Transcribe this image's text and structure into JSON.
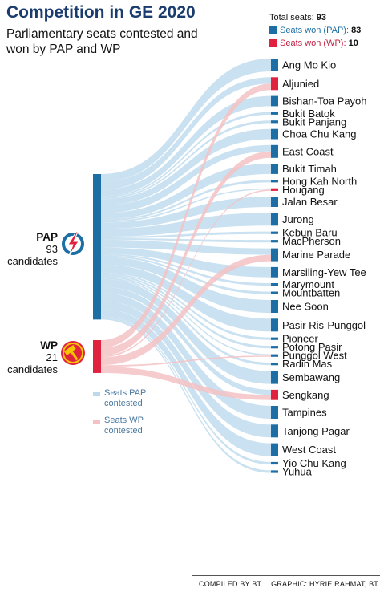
{
  "title": "Competition in GE 2020",
  "subtitle": "Parliamentary seats contested and won by PAP and WP",
  "legend": {
    "total_label": "Total seats:",
    "total_value": "93",
    "pap_label": "Seats won (PAP):",
    "pap_value": "83",
    "wp_label": "Seats won (WP):",
    "wp_value": "10"
  },
  "colors": {
    "pap": "#1c6ea4",
    "wp": "#e0223f",
    "pap_flow": "#bcd9ec",
    "wp_flow": "#f4c2c4"
  },
  "parties": {
    "pap": {
      "name": "PAP",
      "count": "93",
      "unit": "candidates",
      "icon": "pap-lightning-logo-icon"
    },
    "wp": {
      "name": "WP",
      "count": "21",
      "unit": "candidates",
      "icon": "wp-hammer-logo-icon"
    }
  },
  "flow_legend": {
    "pap": "Seats PAP contested",
    "wp": "Seats WP contested"
  },
  "constituencies": [
    {
      "name": "Ang Mo Kio",
      "seats": 5,
      "winner": "PAP",
      "wp": false
    },
    {
      "name": "Aljunied",
      "seats": 5,
      "winner": "WP",
      "wp": true
    },
    {
      "name": "Bishan-Toa Payoh",
      "seats": 4,
      "winner": "PAP",
      "wp": false
    },
    {
      "name": "Bukit Batok",
      "seats": 1,
      "winner": "PAP",
      "wp": false
    },
    {
      "name": "Bukit Panjang",
      "seats": 1,
      "winner": "PAP",
      "wp": false
    },
    {
      "name": "Choa Chu Kang",
      "seats": 4,
      "winner": "PAP",
      "wp": false
    },
    {
      "name": "East Coast",
      "seats": 5,
      "winner": "PAP",
      "wp": true
    },
    {
      "name": "Bukit Timah",
      "seats": 4,
      "winner": "PAP",
      "wp": false
    },
    {
      "name": "Hong Kah North",
      "seats": 1,
      "winner": "PAP",
      "wp": false
    },
    {
      "name": "Hougang",
      "seats": 1,
      "winner": "WP",
      "wp": true
    },
    {
      "name": "Jalan Besar",
      "seats": 4,
      "winner": "PAP",
      "wp": false
    },
    {
      "name": "Jurong",
      "seats": 5,
      "winner": "PAP",
      "wp": false
    },
    {
      "name": "Kebun Baru",
      "seats": 1,
      "winner": "PAP",
      "wp": false
    },
    {
      "name": "MacPherson",
      "seats": 1,
      "winner": "PAP",
      "wp": false
    },
    {
      "name": "Marine Parade",
      "seats": 5,
      "winner": "PAP",
      "wp": true
    },
    {
      "name": "Marsiling-Yew Tee",
      "seats": 4,
      "winner": "PAP",
      "wp": false
    },
    {
      "name": "Marymount",
      "seats": 1,
      "winner": "PAP",
      "wp": false
    },
    {
      "name": "Mountbatten",
      "seats": 1,
      "winner": "PAP",
      "wp": false
    },
    {
      "name": "Nee Soon",
      "seats": 5,
      "winner": "PAP",
      "wp": false
    },
    {
      "name": "Pasir Ris-Punggol",
      "seats": 5,
      "winner": "PAP",
      "wp": false
    },
    {
      "name": "Pioneer",
      "seats": 1,
      "winner": "PAP",
      "wp": false
    },
    {
      "name": "Potong Pasir",
      "seats": 1,
      "winner": "PAP",
      "wp": false
    },
    {
      "name": "Punggol West",
      "seats": 1,
      "winner": "PAP",
      "wp": true
    },
    {
      "name": "Radin Mas",
      "seats": 1,
      "winner": "PAP",
      "wp": false
    },
    {
      "name": "Sembawang",
      "seats": 5,
      "winner": "PAP",
      "wp": false
    },
    {
      "name": "Sengkang",
      "seats": 4,
      "winner": "WP",
      "wp": true
    },
    {
      "name": "Tampines",
      "seats": 5,
      "winner": "PAP",
      "wp": false
    },
    {
      "name": "Tanjong Pagar",
      "seats": 5,
      "winner": "PAP",
      "wp": false
    },
    {
      "name": "West Coast",
      "seats": 5,
      "winner": "PAP",
      "wp": false
    },
    {
      "name": "Yio Chu Kang",
      "seats": 1,
      "winner": "PAP",
      "wp": false
    },
    {
      "name": "Yuhua",
      "seats": 1,
      "winner": "PAP",
      "wp": false
    }
  ],
  "footer": {
    "compiled": "COMPILED BY BT",
    "graphic": "GRAPHIC: HYRIE RAHMAT, BT"
  }
}
